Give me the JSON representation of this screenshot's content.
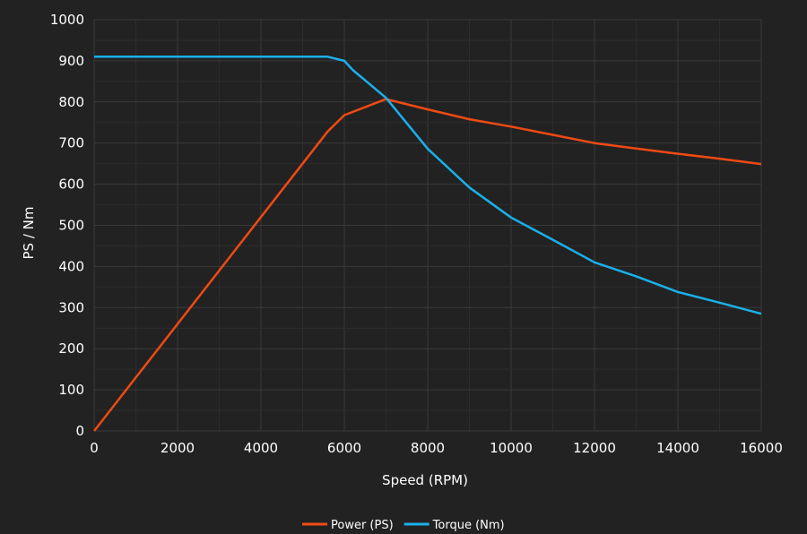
{
  "chart_data": {
    "type": "line",
    "xlabel": "Speed (RPM)",
    "ylabel": "PS / Nm",
    "xlim": [
      0,
      16000
    ],
    "ylim": [
      0,
      1000
    ],
    "x_ticks": [
      0,
      2000,
      4000,
      6000,
      8000,
      10000,
      12000,
      14000,
      16000
    ],
    "y_ticks": [
      0,
      100,
      200,
      300,
      400,
      500,
      600,
      700,
      800,
      900,
      1000
    ],
    "grid": true,
    "legend_position": "bottom-center",
    "series": [
      {
        "name": "Power (PS)",
        "color": "#f04a14",
        "x": [
          0,
          5600,
          6000,
          7000,
          8000,
          9000,
          10000,
          11000,
          12000,
          13000,
          14000,
          15000,
          16000
        ],
        "values": [
          0,
          728,
          768,
          807,
          782,
          758,
          740,
          720,
          700,
          687,
          674,
          662,
          649
        ]
      },
      {
        "name": "Torque (Nm)",
        "color": "#1ab0ea",
        "x": [
          0,
          5600,
          6000,
          6200,
          7000,
          8000,
          9000,
          10000,
          11000,
          12000,
          13000,
          14000,
          15000,
          16000
        ],
        "values": [
          910,
          910,
          900,
          878,
          810,
          686,
          592,
          519,
          465,
          410,
          376,
          338,
          312,
          285
        ]
      }
    ]
  }
}
